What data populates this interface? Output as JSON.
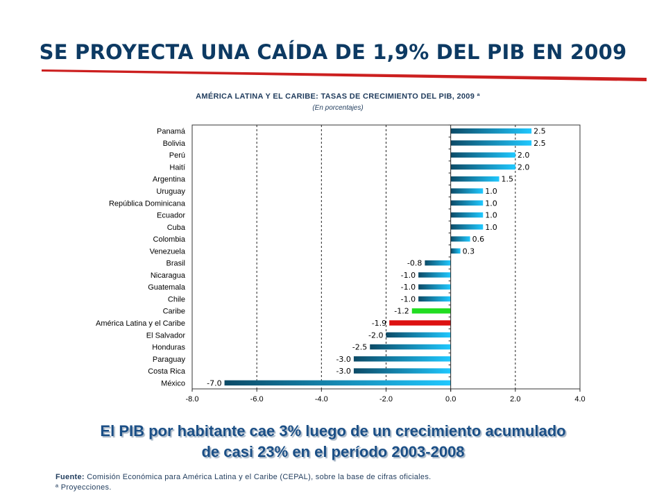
{
  "slide": {
    "title": "SE PROYECTA UNA CAÍDA DE 1,9% DEL PIB EN 2009",
    "headline_line1": "El PIB por habitante cae 3% luego de un crecimiento acumulado",
    "headline_line2": "de casi 23% en el período 2003-2008",
    "source_label": "Fuente:",
    "source_text": "Comisión Económica para América Latina y el Caribe (CEPAL), sobre la base de cifras oficiales.",
    "note": "ª Proyecciones.",
    "accent_color": "#cc1f1f",
    "title_color": "#0d3a63"
  },
  "chart_data": {
    "type": "bar",
    "orientation": "horizontal",
    "title": "AMÉRICA LATINA Y EL CARIBE: TASAS DE CRECIMIENTO DEL PIB, 2009 ª",
    "subtitle": "(En porcentajes)",
    "xlim": [
      -8.0,
      4.0
    ],
    "xticks": [
      "-8.0",
      "-6.0",
      "-4.0",
      "-2.0",
      "0.0",
      "2.0",
      "4.0"
    ],
    "xtick_values": [
      -8,
      -6,
      -4,
      -2,
      0,
      2,
      4
    ],
    "grid": "vertical dashed",
    "categories": [
      "Panamá",
      "Bolivia",
      "Perú",
      "Haití",
      "Argentina",
      "Uruguay",
      "República Dominicana",
      "Ecuador",
      "Cuba",
      "Colombia",
      "Venezuela",
      "Brasil",
      "Nicaragua",
      "Guatemala",
      "Chile",
      "Caribe",
      "América Latina y el Caribe",
      "El Salvador",
      "Honduras",
      "Paraguay",
      "Costa Rica",
      "México"
    ],
    "values": [
      2.5,
      2.5,
      2.0,
      2.0,
      1.5,
      1.0,
      1.0,
      1.0,
      1.0,
      0.6,
      0.3,
      -0.8,
      -1.0,
      -1.0,
      -1.0,
      -1.2,
      -1.9,
      -2.0,
      -2.5,
      -3.0,
      -3.0,
      -7.0
    ],
    "value_labels": [
      "2.5",
      "2.5",
      "2.0",
      "2.0",
      "1.5",
      "1.0",
      "1.0",
      "1.0",
      "1.0",
      "0.6",
      "0.3",
      "-0.8",
      "-1.0",
      "-1.0",
      "-1.0",
      "-1.2",
      "-1.9",
      "-2.0",
      "-2.5",
      "-3.0",
      "-3.0",
      "-7.0"
    ],
    "highlight": {
      "Caribe": "#22dd22",
      "América Latina y el Caribe": "#dd1111"
    },
    "bar_gradient": [
      "#0c4a66",
      "#1fc8ff"
    ]
  }
}
